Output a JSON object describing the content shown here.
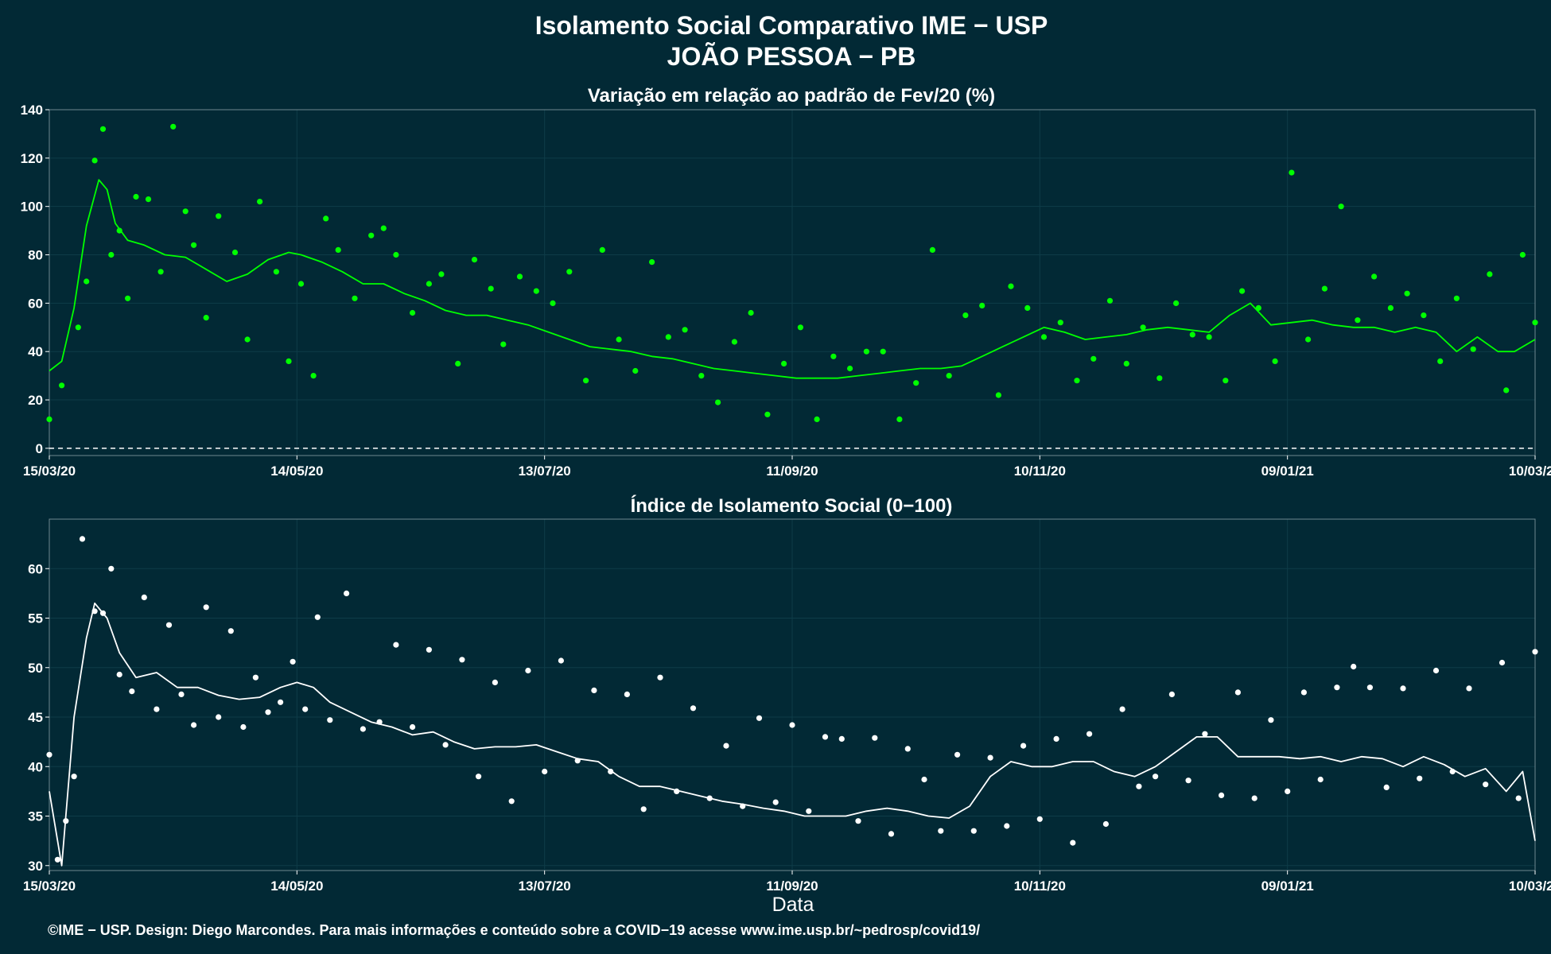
{
  "title_line1": "Isolamento Social Comparativo IME − USP",
  "title_line2": "JOÃO PESSOA − PB",
  "xlabel": "Data",
  "footer": "©IME − USP. Design: Diego Marcondes. Para mais informações e conteúdo sobre a COVID−19 acesse www.ime.usp.br/~pedrosp/covid19/",
  "colors": {
    "background": "#022935",
    "panel_border": "#6f8790",
    "grid": "#0e3c48",
    "top_series": "#00ff00",
    "bottom_series": "#ffffff"
  },
  "chart_data": [
    {
      "type": "scatter",
      "title": "Variação em relação ao padrão de Fev/20 (%)",
      "x_type": "date",
      "x_range": [
        "2020-03-15",
        "2021-03-10"
      ],
      "x_ticks": [
        "15/03/20",
        "14/05/20",
        "13/07/20",
        "11/09/20",
        "10/11/20",
        "09/01/21",
        "10/03/21"
      ],
      "ylim": [
        -3,
        140
      ],
      "y_ticks": [
        0,
        20,
        40,
        60,
        80,
        100,
        120,
        140
      ],
      "reference_line": {
        "y": 0,
        "style": "dashed"
      },
      "grid": true,
      "series": [
        {
          "style": "points",
          "color": "#00ff00",
          "x": [
            "2020-03-15",
            "2020-03-18",
            "2020-03-22",
            "2020-03-24",
            "2020-03-26",
            "2020-03-28",
            "2020-03-30",
            "2020-04-01",
            "2020-04-03",
            "2020-04-05",
            "2020-04-08",
            "2020-04-11",
            "2020-04-14",
            "2020-04-17",
            "2020-04-19",
            "2020-04-22",
            "2020-04-25",
            "2020-04-29",
            "2020-05-02",
            "2020-05-05",
            "2020-05-09",
            "2020-05-12",
            "2020-05-15",
            "2020-05-18",
            "2020-05-21",
            "2020-05-24",
            "2020-05-28",
            "2020-06-01",
            "2020-06-04",
            "2020-06-07",
            "2020-06-11",
            "2020-06-15",
            "2020-06-18",
            "2020-06-22",
            "2020-06-26",
            "2020-06-30",
            "2020-07-03",
            "2020-07-07",
            "2020-07-11",
            "2020-07-15",
            "2020-07-19",
            "2020-07-23",
            "2020-07-27",
            "2020-07-31",
            "2020-08-04",
            "2020-08-08",
            "2020-08-12",
            "2020-08-16",
            "2020-08-20",
            "2020-08-24",
            "2020-08-28",
            "2020-09-01",
            "2020-09-05",
            "2020-09-09",
            "2020-09-13",
            "2020-09-17",
            "2020-09-21",
            "2020-09-25",
            "2020-09-29",
            "2020-10-03",
            "2020-10-07",
            "2020-10-11",
            "2020-10-15",
            "2020-10-19",
            "2020-10-23",
            "2020-10-27",
            "2020-10-31",
            "2020-11-03",
            "2020-11-07",
            "2020-11-11",
            "2020-11-15",
            "2020-11-19",
            "2020-11-23",
            "2020-11-27",
            "2020-12-01",
            "2020-12-05",
            "2020-12-09",
            "2020-12-13",
            "2020-12-17",
            "2020-12-21",
            "2020-12-25",
            "2020-12-29",
            "2021-01-02",
            "2021-01-06",
            "2021-01-10",
            "2021-01-14",
            "2021-01-18",
            "2021-01-22",
            "2021-01-26",
            "2021-01-30",
            "2021-02-03",
            "2021-02-07",
            "2021-02-11",
            "2021-02-15",
            "2021-02-19",
            "2021-02-23",
            "2021-02-27",
            "2021-03-03",
            "2021-03-07",
            "2021-03-10"
          ],
          "y": [
            12,
            26,
            50,
            69,
            119,
            132,
            80,
            90,
            62,
            104,
            103,
            73,
            133,
            98,
            84,
            54,
            96,
            81,
            45,
            102,
            73,
            36,
            68,
            30,
            95,
            82,
            62,
            88,
            91,
            80,
            56,
            68,
            72,
            35,
            78,
            66,
            43,
            71,
            65,
            60,
            73,
            28,
            82,
            45,
            32,
            77,
            46,
            49,
            30,
            19,
            44,
            56,
            14,
            35,
            50,
            12,
            38,
            33,
            40,
            40,
            12,
            27,
            82,
            30,
            55,
            59,
            22,
            67,
            58,
            46,
            52,
            28,
            37,
            61,
            35,
            50,
            29,
            60,
            47,
            46,
            28,
            65,
            58,
            36,
            114,
            45,
            66,
            100,
            53,
            71,
            58,
            64,
            55,
            36,
            62,
            41,
            72,
            24,
            80,
            52
          ]
        },
        {
          "style": "line",
          "color": "#00ff00",
          "description": "7-day moving average",
          "x": [
            "2020-03-15",
            "2020-03-18",
            "2020-03-21",
            "2020-03-24",
            "2020-03-27",
            "2020-03-29",
            "2020-03-31",
            "2020-04-03",
            "2020-04-07",
            "2020-04-12",
            "2020-04-17",
            "2020-04-22",
            "2020-04-27",
            "2020-05-02",
            "2020-05-07",
            "2020-05-12",
            "2020-05-15",
            "2020-05-20",
            "2020-05-25",
            "2020-05-30",
            "2020-06-04",
            "2020-06-09",
            "2020-06-14",
            "2020-06-19",
            "2020-06-24",
            "2020-06-29",
            "2020-07-04",
            "2020-07-09",
            "2020-07-14",
            "2020-07-19",
            "2020-07-24",
            "2020-07-29",
            "2020-08-03",
            "2020-08-08",
            "2020-08-13",
            "2020-08-18",
            "2020-08-23",
            "2020-08-28",
            "2020-09-02",
            "2020-09-07",
            "2020-09-12",
            "2020-09-17",
            "2020-09-22",
            "2020-09-27",
            "2020-10-02",
            "2020-10-07",
            "2020-10-12",
            "2020-10-17",
            "2020-10-22",
            "2020-10-27",
            "2020-11-01",
            "2020-11-06",
            "2020-11-11",
            "2020-11-16",
            "2020-11-21",
            "2020-11-26",
            "2020-12-01",
            "2020-12-06",
            "2020-12-11",
            "2020-12-16",
            "2020-12-21",
            "2020-12-26",
            "2020-12-31",
            "2021-01-05",
            "2021-01-10",
            "2021-01-15",
            "2021-01-20",
            "2021-01-25",
            "2021-01-30",
            "2021-02-04",
            "2021-02-09",
            "2021-02-14",
            "2021-02-19",
            "2021-02-24",
            "2021-03-01",
            "2021-03-05",
            "2021-03-10"
          ],
          "y": [
            32,
            36,
            58,
            92,
            111,
            107,
            93,
            86,
            84,
            80,
            79,
            74,
            69,
            72,
            78,
            81,
            80,
            77,
            73,
            68,
            68,
            64,
            61,
            57,
            55,
            55,
            53,
            51,
            48,
            45,
            42,
            41,
            40,
            38,
            37,
            35,
            33,
            32,
            31,
            30,
            29,
            29,
            29,
            30,
            31,
            32,
            33,
            33,
            34,
            38,
            42,
            46,
            50,
            48,
            45,
            46,
            47,
            49,
            50,
            49,
            48,
            55,
            60,
            51,
            52,
            53,
            51,
            50,
            50,
            48,
            50,
            48,
            40,
            46,
            40,
            40,
            45
          ]
        }
      ]
    },
    {
      "type": "scatter",
      "title": "Índice de Isolamento Social (0−100)",
      "x_type": "date",
      "x_range": [
        "2020-03-15",
        "2021-03-10"
      ],
      "x_ticks": [
        "15/03/20",
        "14/05/20",
        "13/07/20",
        "11/09/20",
        "10/11/20",
        "09/01/21",
        "10/03/21"
      ],
      "xlabel": "Data",
      "ylim": [
        29.5,
        65
      ],
      "y_ticks": [
        30,
        35,
        40,
        45,
        50,
        55,
        60
      ],
      "grid": true,
      "series": [
        {
          "style": "points",
          "color": "#ffffff",
          "x": [
            "2020-03-15",
            "2020-03-17",
            "2020-03-19",
            "2020-03-21",
            "2020-03-23",
            "2020-03-26",
            "2020-03-28",
            "2020-03-30",
            "2020-04-01",
            "2020-04-04",
            "2020-04-07",
            "2020-04-10",
            "2020-04-13",
            "2020-04-16",
            "2020-04-19",
            "2020-04-22",
            "2020-04-25",
            "2020-04-28",
            "2020-05-01",
            "2020-05-04",
            "2020-05-07",
            "2020-05-10",
            "2020-05-13",
            "2020-05-16",
            "2020-05-19",
            "2020-05-22",
            "2020-05-26",
            "2020-05-30",
            "2020-06-03",
            "2020-06-07",
            "2020-06-11",
            "2020-06-15",
            "2020-06-19",
            "2020-06-23",
            "2020-06-27",
            "2020-07-01",
            "2020-07-05",
            "2020-07-09",
            "2020-07-13",
            "2020-07-17",
            "2020-07-21",
            "2020-07-25",
            "2020-07-29",
            "2020-08-02",
            "2020-08-06",
            "2020-08-10",
            "2020-08-14",
            "2020-08-18",
            "2020-08-22",
            "2020-08-26",
            "2020-08-30",
            "2020-09-03",
            "2020-09-07",
            "2020-09-11",
            "2020-09-15",
            "2020-09-19",
            "2020-09-23",
            "2020-09-27",
            "2020-10-01",
            "2020-10-05",
            "2020-10-09",
            "2020-10-13",
            "2020-10-17",
            "2020-10-21",
            "2020-10-25",
            "2020-10-29",
            "2020-11-02",
            "2020-11-06",
            "2020-11-10",
            "2020-11-14",
            "2020-11-18",
            "2020-11-22",
            "2020-11-26",
            "2020-11-30",
            "2020-12-04",
            "2020-12-08",
            "2020-12-12",
            "2020-12-16",
            "2020-12-20",
            "2020-12-24",
            "2020-12-28",
            "2021-01-01",
            "2021-01-05",
            "2021-01-09",
            "2021-01-13",
            "2021-01-17",
            "2021-01-21",
            "2021-01-25",
            "2021-01-29",
            "2021-02-02",
            "2021-02-06",
            "2021-02-10",
            "2021-02-14",
            "2021-02-18",
            "2021-02-22",
            "2021-02-26",
            "2021-03-02",
            "2021-03-06",
            "2021-03-10"
          ],
          "y": [
            41.2,
            30.6,
            34.5,
            39.0,
            63.0,
            55.7,
            55.5,
            60.0,
            49.3,
            47.6,
            57.1,
            45.8,
            54.3,
            47.3,
            44.2,
            56.1,
            45.0,
            53.7,
            44.0,
            49.0,
            45.5,
            46.5,
            50.6,
            45.8,
            55.1,
            44.7,
            57.5,
            43.8,
            44.5,
            52.3,
            44.0,
            51.8,
            42.2,
            50.8,
            39.0,
            48.5,
            36.5,
            49.7,
            39.5,
            50.7,
            40.6,
            47.7,
            39.5,
            47.3,
            35.7,
            49.0,
            37.5,
            45.9,
            36.8,
            42.1,
            36.0,
            44.9,
            36.4,
            44.2,
            35.5,
            43.0,
            42.8,
            34.5,
            42.9,
            33.2,
            41.8,
            38.7,
            33.5,
            41.2,
            33.5,
            40.9,
            34.0,
            42.1,
            34.7,
            42.8,
            32.3,
            43.3,
            34.2,
            45.8,
            38.0,
            39.0,
            47.3,
            38.6,
            43.3,
            37.1,
            47.5,
            36.8,
            44.7,
            37.5,
            47.5,
            38.7,
            48.0,
            50.1,
            48.0,
            37.9,
            47.9,
            38.8,
            49.7,
            39.5,
            47.9,
            38.2,
            50.5,
            36.8,
            51.6
          ]
        },
        {
          "style": "line",
          "color": "#ffffff",
          "description": "7-day moving average",
          "x": [
            "2020-03-15",
            "2020-03-18",
            "2020-03-21",
            "2020-03-24",
            "2020-03-26",
            "2020-03-29",
            "2020-04-01",
            "2020-04-05",
            "2020-04-10",
            "2020-04-15",
            "2020-04-20",
            "2020-04-25",
            "2020-04-30",
            "2020-05-05",
            "2020-05-10",
            "2020-05-14",
            "2020-05-18",
            "2020-05-22",
            "2020-05-27",
            "2020-06-01",
            "2020-06-06",
            "2020-06-11",
            "2020-06-16",
            "2020-06-21",
            "2020-06-26",
            "2020-07-01",
            "2020-07-06",
            "2020-07-11",
            "2020-07-16",
            "2020-07-21",
            "2020-07-26",
            "2020-07-31",
            "2020-08-05",
            "2020-08-10",
            "2020-08-15",
            "2020-08-20",
            "2020-08-25",
            "2020-08-30",
            "2020-09-04",
            "2020-09-09",
            "2020-09-14",
            "2020-09-19",
            "2020-09-24",
            "2020-09-29",
            "2020-10-04",
            "2020-10-09",
            "2020-10-14",
            "2020-10-19",
            "2020-10-24",
            "2020-10-29",
            "2020-11-03",
            "2020-11-08",
            "2020-11-13",
            "2020-11-18",
            "2020-11-23",
            "2020-11-28",
            "2020-12-03",
            "2020-12-08",
            "2020-12-13",
            "2020-12-18",
            "2020-12-23",
            "2020-12-28",
            "2021-01-02",
            "2021-01-07",
            "2021-01-12",
            "2021-01-17",
            "2021-01-22",
            "2021-01-27",
            "2021-02-01",
            "2021-02-06",
            "2021-02-11",
            "2021-02-16",
            "2021-02-21",
            "2021-02-26",
            "2021-03-03",
            "2021-03-07",
            "2021-03-10"
          ],
          "y": [
            37.5,
            30.0,
            45.0,
            53.0,
            56.5,
            55.0,
            51.5,
            49.0,
            49.5,
            48.0,
            48.0,
            47.2,
            46.8,
            47.0,
            48.0,
            48.5,
            48.0,
            46.5,
            45.5,
            44.5,
            44.0,
            43.2,
            43.5,
            42.5,
            41.8,
            42.0,
            42.0,
            42.2,
            41.5,
            40.8,
            40.5,
            39.0,
            38.0,
            38.0,
            37.5,
            37.0,
            36.5,
            36.2,
            35.8,
            35.5,
            35.0,
            35.0,
            35.0,
            35.5,
            35.8,
            35.5,
            35.0,
            34.8,
            36.0,
            39.0,
            40.5,
            40.0,
            40.0,
            40.5,
            40.5,
            39.5,
            39.0,
            40.0,
            41.5,
            43.0,
            43.0,
            41.0,
            41.0,
            41.0,
            40.8,
            41.0,
            40.5,
            41.0,
            40.8,
            40.0,
            41.0,
            40.2,
            39.0,
            39.8,
            37.5,
            39.5,
            32.5
          ]
        }
      ]
    }
  ]
}
